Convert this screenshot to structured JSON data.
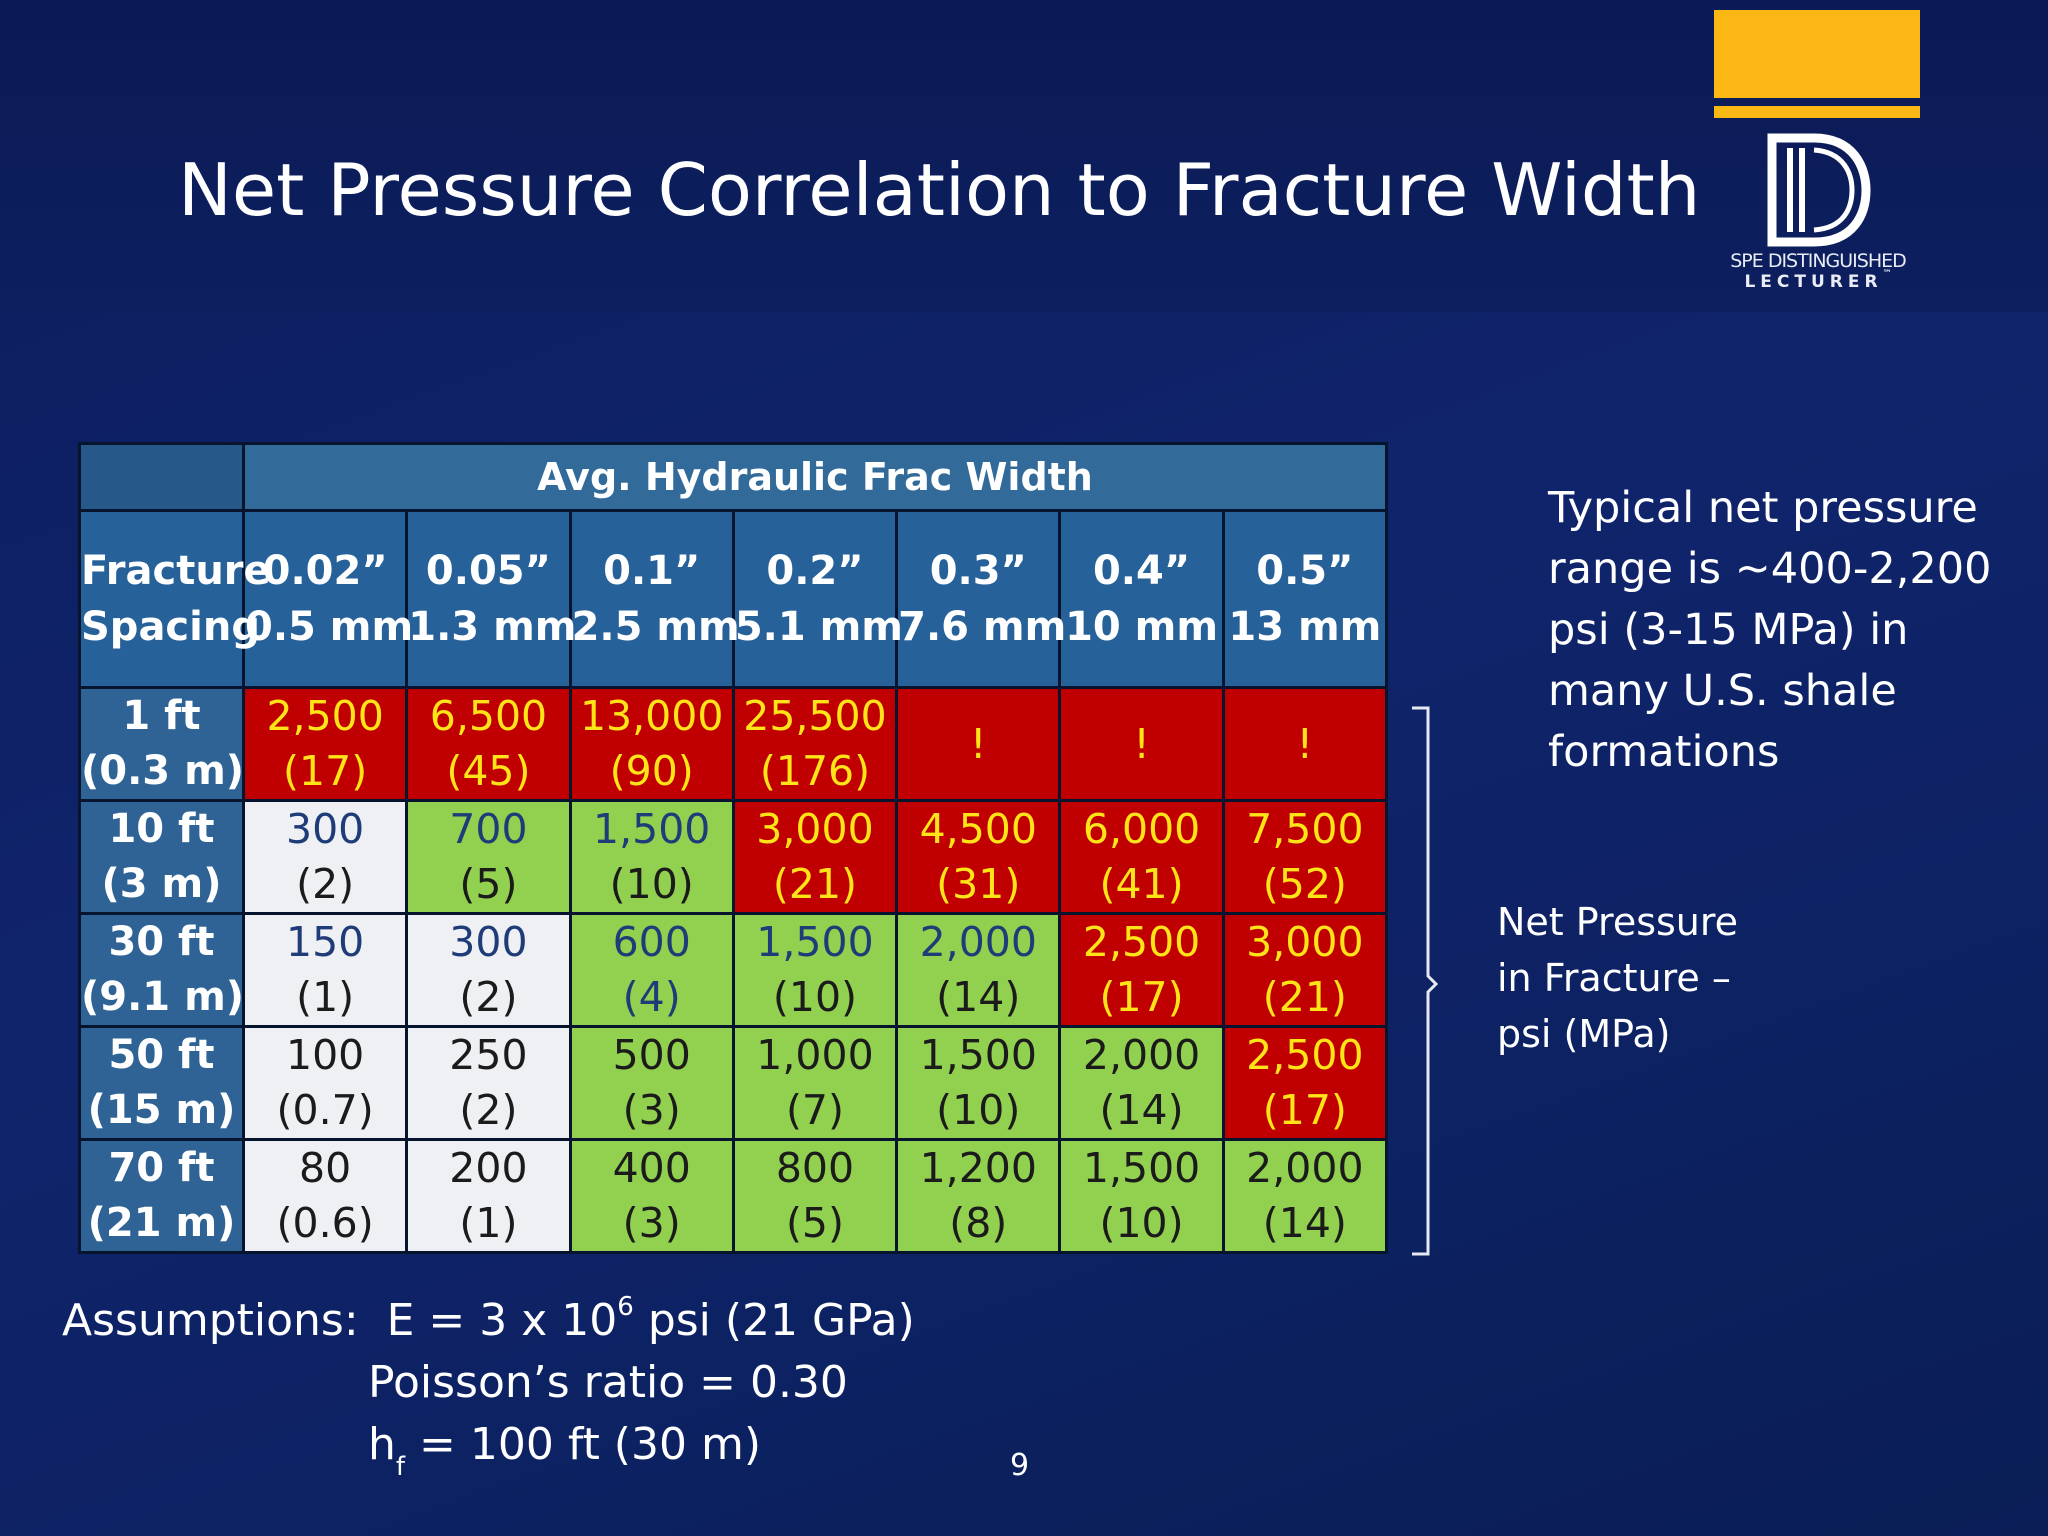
{
  "title": "Net Pressure Correlation to Fracture Width",
  "logo": {
    "line1": "SPE DISTINGUISHED",
    "line2": "LECTURER",
    "tm": "™"
  },
  "table": {
    "super_header": "Avg. Hydraulic Frac Width",
    "spacing_header": [
      "Fracture",
      "Spacing"
    ],
    "columns": [
      {
        "in": "0.02”",
        "mm": "0.5 mm"
      },
      {
        "in": "0.05”",
        "mm": "1.3 mm"
      },
      {
        "in": "0.1”",
        "mm": "2.5 mm"
      },
      {
        "in": "0.2”",
        "mm": "5.1 mm"
      },
      {
        "in": "0.3”",
        "mm": "7.6 mm"
      },
      {
        "in": "0.4”",
        "mm": "10 mm"
      },
      {
        "in": "0.5”",
        "mm": "13 mm"
      }
    ],
    "rows": [
      {
        "ft": "1 ft",
        "m": "(0.3 m)",
        "cells": [
          {
            "psi": "2,500",
            "mpa": "(17)",
            "color": "red"
          },
          {
            "psi": "6,500",
            "mpa": "(45)",
            "color": "red"
          },
          {
            "psi": "13,000",
            "mpa": "(90)",
            "color": "red"
          },
          {
            "psi": "25,500",
            "mpa": "(176)",
            "color": "red"
          },
          {
            "psi": "!",
            "mpa": "",
            "color": "red"
          },
          {
            "psi": "!",
            "mpa": "",
            "color": "red"
          },
          {
            "psi": "!",
            "mpa": "",
            "color": "red"
          }
        ]
      },
      {
        "ft": "10 ft",
        "m": "(3 m)",
        "cells": [
          {
            "psi": "300",
            "mpa": "(2)",
            "color": "white",
            "blue": true
          },
          {
            "psi": "700",
            "mpa": "(5)",
            "color": "green",
            "blue": true
          },
          {
            "psi": "1,500",
            "mpa": "(10)",
            "color": "green",
            "blue": true
          },
          {
            "psi": "3,000",
            "mpa": "(21)",
            "color": "red"
          },
          {
            "psi": "4,500",
            "mpa": "(31)",
            "color": "red"
          },
          {
            "psi": "6,000",
            "mpa": "(41)",
            "color": "red"
          },
          {
            "psi": "7,500",
            "mpa": "(52)",
            "color": "red"
          }
        ]
      },
      {
        "ft": "30 ft",
        "m": "(9.1 m)",
        "cells": [
          {
            "psi": "150",
            "mpa": "(1)",
            "color": "white",
            "blue": true
          },
          {
            "psi": "300",
            "mpa": "(2)",
            "color": "white",
            "blue": true
          },
          {
            "psi": "600",
            "mpa": "(4)",
            "color": "green",
            "blue": true,
            "blue_both": true
          },
          {
            "psi": "1,500",
            "mpa": "(10)",
            "color": "green",
            "blue": true
          },
          {
            "psi": "2,000",
            "mpa": "(14)",
            "color": "green",
            "blue": true
          },
          {
            "psi": "2,500",
            "mpa": "(17)",
            "color": "red"
          },
          {
            "psi": "3,000",
            "mpa": "(21)",
            "color": "red"
          }
        ]
      },
      {
        "ft": "50 ft",
        "m": "(15 m)",
        "cells": [
          {
            "psi": "100",
            "mpa": "(0.7)",
            "color": "white"
          },
          {
            "psi": "250",
            "mpa": "(2)",
            "color": "white"
          },
          {
            "psi": "500",
            "mpa": "(3)",
            "color": "green"
          },
          {
            "psi": "1,000",
            "mpa": "(7)",
            "color": "green"
          },
          {
            "psi": "1,500",
            "mpa": "(10)",
            "color": "green"
          },
          {
            "psi": "2,000",
            "mpa": "(14)",
            "color": "green"
          },
          {
            "psi": "2,500",
            "mpa": "(17)",
            "color": "red"
          }
        ]
      },
      {
        "ft": "70 ft",
        "m": "(21 m)",
        "cells": [
          {
            "psi": "80",
            "mpa": "(0.6)",
            "color": "white"
          },
          {
            "psi": "200",
            "mpa": "(1)",
            "color": "white"
          },
          {
            "psi": "400",
            "mpa": "(3)",
            "color": "green"
          },
          {
            "psi": "800",
            "mpa": "(5)",
            "color": "green"
          },
          {
            "psi": "1,200",
            "mpa": "(8)",
            "color": "green"
          },
          {
            "psi": "1,500",
            "mpa": "(10)",
            "color": "green"
          },
          {
            "psi": "2,000",
            "mpa": "(14)",
            "color": "green"
          }
        ]
      }
    ]
  },
  "typical_lines": [
    "Typical net pressure",
    "range is ~400-2,200",
    "psi (3-15 MPa) in",
    "many U.S. shale",
    "formations"
  ],
  "net_pressure_lines": [
    "Net Pressure",
    "in Fracture –",
    "psi (MPa)"
  ],
  "assumptions": {
    "label": "Assumptions:",
    "e_prefix": "E = 3 x 10",
    "e_exp": "6",
    "e_suffix": " psi (21 GPa)",
    "poisson": "Poisson’s ratio = 0.30",
    "hf_h": "h",
    "hf_sub": "f",
    "hf_rest": " = 100 ft (30 m)"
  },
  "page_number": "9",
  "colors": {
    "red": "#c00000",
    "green": "#92d050",
    "white": "#eef0f4",
    "yellow_text": "#ffe417",
    "blue_text": "#1f3c78",
    "logo_gold": "#fbb713"
  }
}
